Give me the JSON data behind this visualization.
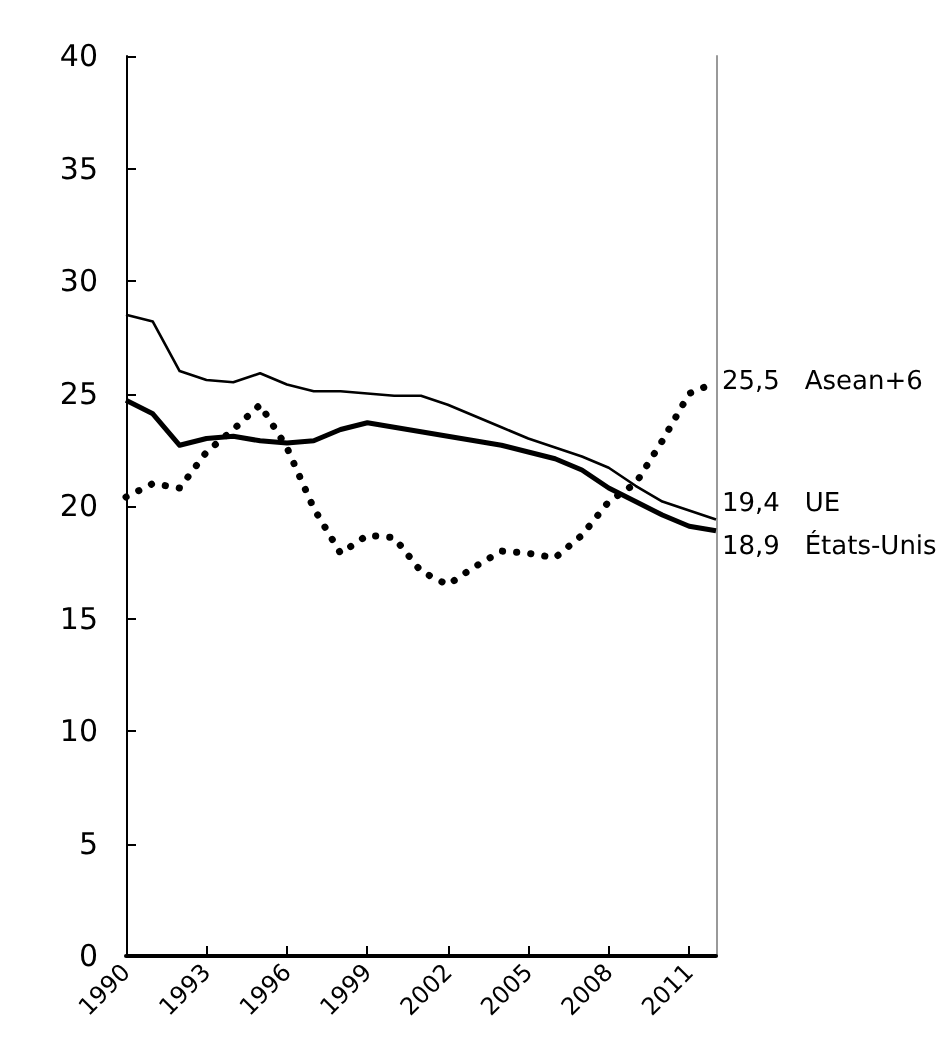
{
  "chart_data": {
    "type": "line",
    "x": [
      1990,
      1991,
      1992,
      1993,
      1994,
      1995,
      1996,
      1997,
      1998,
      1999,
      2000,
      2001,
      2002,
      2003,
      2004,
      2005,
      2006,
      2007,
      2008,
      2009,
      2010,
      2011,
      2012
    ],
    "series": [
      {
        "name": "Asean+6",
        "color": "#000000",
        "line_style": "dotted",
        "values": [
          20.4,
          21.0,
          20.8,
          22.4,
          23.4,
          24.5,
          22.6,
          19.9,
          17.9,
          18.7,
          18.6,
          17.1,
          16.5,
          17.3,
          18.0,
          17.9,
          17.7,
          18.7,
          20.2,
          21.0,
          22.9,
          25.0,
          25.5
        ],
        "value_labels": [
          null,
          null,
          null,
          null,
          null,
          null,
          null,
          null,
          null,
          null,
          null,
          null,
          null,
          null,
          null,
          null,
          null,
          null,
          null,
          null,
          null,
          null,
          "25,5"
        ]
      },
      {
        "name": "UE",
        "color": "#000000",
        "line_style": "solid",
        "values": [
          28.5,
          28.2,
          26.0,
          25.6,
          25.5,
          25.9,
          25.4,
          25.1,
          25.1,
          25.0,
          24.9,
          24.9,
          24.5,
          24.0,
          23.5,
          23.0,
          22.6,
          22.2,
          21.7,
          20.9,
          20.2,
          19.8,
          19.4
        ],
        "value_labels": [
          null,
          null,
          null,
          null,
          null,
          null,
          null,
          null,
          null,
          null,
          null,
          null,
          null,
          null,
          null,
          null,
          null,
          null,
          null,
          null,
          null,
          null,
          "19,4"
        ]
      },
      {
        "name": "États-Unis",
        "color": "#000000",
        "line_style": "solid",
        "values": [
          24.7,
          24.1,
          22.7,
          23.0,
          23.1,
          22.9,
          22.8,
          22.9,
          23.4,
          23.7,
          23.5,
          23.3,
          23.1,
          22.9,
          22.7,
          22.4,
          22.1,
          21.6,
          20.8,
          20.2,
          19.6,
          19.1,
          18.9
        ],
        "value_labels": [
          null,
          null,
          null,
          null,
          null,
          null,
          null,
          null,
          null,
          null,
          null,
          null,
          null,
          null,
          null,
          null,
          null,
          null,
          null,
          null,
          null,
          null,
          "18,9"
        ]
      }
    ],
    "xlim": [
      1990,
      2012
    ],
    "xticks": [
      1990,
      1993,
      1996,
      1999,
      2002,
      2005,
      2008,
      2011
    ],
    "ylim": [
      0,
      40
    ],
    "yticks": [
      0,
      5,
      10,
      15,
      20,
      25,
      30,
      35,
      40
    ],
    "grid": false,
    "legend": false,
    "marker": "none"
  }
}
